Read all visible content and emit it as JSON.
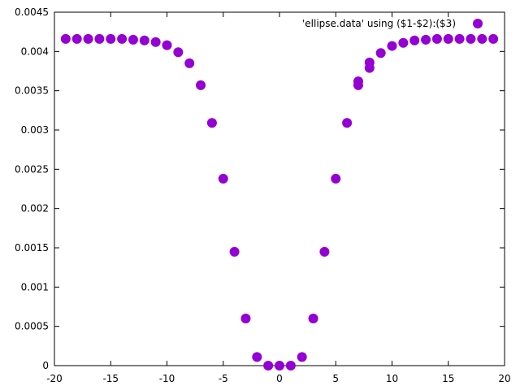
{
  "chart_data": {
    "type": "scatter",
    "title": "",
    "xlabel": "",
    "ylabel": "",
    "xlim": [
      -20,
      20
    ],
    "ylim": [
      0,
      0.0045
    ],
    "grid": false,
    "legend_position": "top-right",
    "x_ticks": [
      -20,
      -15,
      -10,
      -5,
      0,
      5,
      10,
      15,
      20
    ],
    "x_tick_labels": [
      "-20",
      "-15",
      "-10",
      "-5",
      "0",
      "5",
      "10",
      "15",
      "20"
    ],
    "y_ticks": [
      0,
      0.0005,
      0.001,
      0.0015,
      0.002,
      0.0025,
      0.003,
      0.0035,
      0.004,
      0.0045
    ],
    "y_tick_labels": [
      "0",
      "0.0005",
      "0.001",
      "0.0015",
      "0.002",
      "0.0025",
      "0.003",
      "0.0035",
      "0.004",
      "0.0045"
    ],
    "series": [
      {
        "name": "'ellipse.data' using ($1-$2):($3)",
        "color": "#9400d3",
        "points": [
          [
            -19,
            0.00416
          ],
          [
            -18,
            0.00416
          ],
          [
            -17,
            0.00416
          ],
          [
            -16,
            0.00416
          ],
          [
            -15,
            0.00416
          ],
          [
            -14,
            0.00416
          ],
          [
            -13,
            0.00415
          ],
          [
            -12,
            0.00414
          ],
          [
            -11,
            0.00412
          ],
          [
            -10,
            0.00408
          ],
          [
            -9,
            0.00399
          ],
          [
            -8,
            0.00385
          ],
          [
            -7,
            0.00357
          ],
          [
            -6,
            0.00309
          ],
          [
            -5,
            0.00238
          ],
          [
            -4,
            0.00145
          ],
          [
            -3,
            0.0006
          ],
          [
            -2,
            0.00011
          ],
          [
            -1,
            0.0
          ],
          [
            0,
            0.0
          ],
          [
            1,
            0.0
          ],
          [
            2,
            0.00011
          ],
          [
            3,
            0.0006
          ],
          [
            4,
            0.00145
          ],
          [
            5,
            0.00238
          ],
          [
            6,
            0.00309
          ],
          [
            7,
            0.00357
          ],
          [
            7,
            0.00362
          ],
          [
            8,
            0.00379
          ],
          [
            8,
            0.00386
          ],
          [
            9,
            0.00398
          ],
          [
            10,
            0.00407
          ],
          [
            11,
            0.00411
          ],
          [
            12,
            0.00414
          ],
          [
            13,
            0.00415
          ],
          [
            14,
            0.00416
          ],
          [
            15,
            0.00416
          ],
          [
            16,
            0.00416
          ],
          [
            17,
            0.00416
          ],
          [
            18,
            0.00416
          ],
          [
            19,
            0.00416
          ]
        ]
      }
    ]
  }
}
